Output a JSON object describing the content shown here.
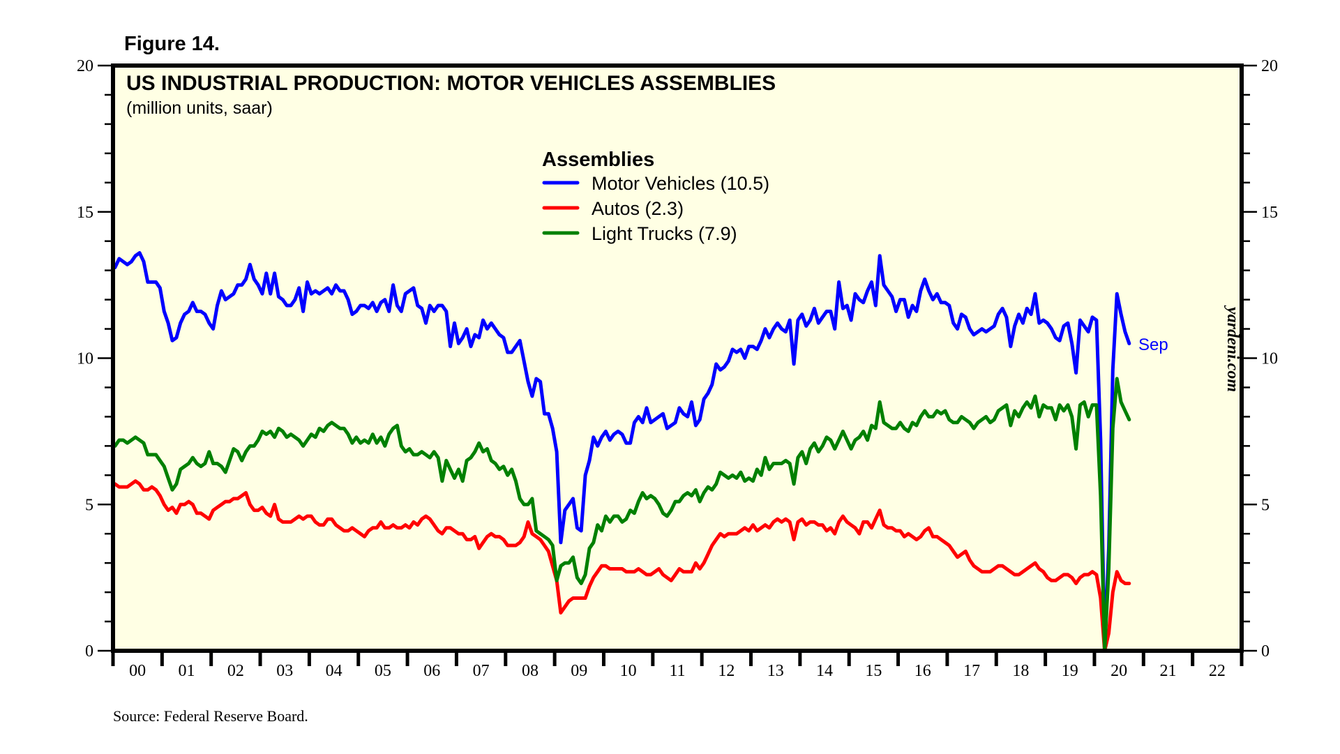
{
  "figure_label": "Figure 14.",
  "source": "Source: Federal Reserve Board.",
  "watermark": "yardeni.com",
  "chart_data": {
    "type": "line",
    "title": "US INDUSTRIAL PRODUCTION: MOTOR VEHICLES ASSEMBLIES",
    "subtitle": "(million units, saar)",
    "xlabel": "",
    "ylabel": "",
    "ylim": [
      0,
      20
    ],
    "xlim": [
      2000,
      2023
    ],
    "y_ticks": [
      0,
      5,
      10,
      15,
      20
    ],
    "y_minor_step": 1,
    "x_tick_labels": [
      "00",
      "01",
      "02",
      "03",
      "04",
      "05",
      "06",
      "07",
      "08",
      "09",
      "10",
      "11",
      "12",
      "13",
      "14",
      "15",
      "16",
      "17",
      "18",
      "19",
      "20",
      "21",
      "22"
    ],
    "grid": false,
    "frequency": "monthly",
    "start": "2000-01",
    "end": "2020-09",
    "end_label": "Sep",
    "legend": {
      "title": "Assemblies",
      "placement": "top-center",
      "entries": [
        "Motor Vehicles (10.5)",
        "Autos (2.3)",
        "Light Trucks (7.9)"
      ]
    },
    "series": [
      {
        "name": "Motor Vehicles",
        "color": "#0000ff",
        "latest": 10.5,
        "values": [
          13.1,
          13.4,
          13.3,
          13.2,
          13.3,
          13.5,
          13.6,
          13.3,
          12.6,
          12.6,
          12.6,
          12.4,
          11.6,
          11.2,
          10.6,
          10.7,
          11.2,
          11.5,
          11.6,
          11.9,
          11.6,
          11.6,
          11.5,
          11.2,
          11.0,
          11.8,
          12.3,
          12.0,
          12.1,
          12.2,
          12.5,
          12.5,
          12.7,
          13.2,
          12.7,
          12.5,
          12.2,
          12.9,
          12.2,
          12.9,
          12.1,
          12.0,
          11.8,
          11.8,
          12.0,
          12.4,
          11.6,
          12.6,
          12.2,
          12.3,
          12.2,
          12.3,
          12.4,
          12.2,
          12.5,
          12.3,
          12.3,
          12.0,
          11.5,
          11.6,
          11.8,
          11.8,
          11.7,
          11.9,
          11.6,
          11.9,
          12.0,
          11.6,
          12.5,
          11.8,
          11.6,
          12.2,
          12.3,
          12.4,
          11.8,
          11.7,
          11.2,
          11.8,
          11.6,
          11.8,
          11.8,
          11.6,
          10.4,
          11.2,
          10.5,
          10.7,
          11.0,
          10.4,
          10.8,
          10.7,
          11.3,
          11.0,
          11.2,
          11.0,
          10.8,
          10.7,
          10.2,
          10.2,
          10.4,
          10.6,
          9.9,
          9.2,
          8.7,
          9.3,
          9.2,
          8.1,
          8.1,
          7.6,
          6.8,
          3.7,
          4.8,
          5.0,
          5.2,
          4.2,
          4.1,
          6.0,
          6.5,
          7.3,
          7.0,
          7.3,
          7.5,
          7.2,
          7.4,
          7.5,
          7.4,
          7.1,
          7.1,
          7.8,
          8.0,
          7.8,
          8.3,
          7.8,
          7.9,
          8.0,
          8.1,
          7.6,
          7.7,
          7.8,
          8.3,
          8.1,
          8.0,
          8.5,
          7.7,
          7.9,
          8.6,
          8.8,
          9.1,
          9.8,
          9.6,
          9.7,
          9.9,
          10.3,
          10.2,
          10.3,
          10.0,
          10.4,
          10.4,
          10.3,
          10.6,
          11.0,
          10.7,
          11.0,
          11.2,
          11.0,
          10.9,
          11.3,
          9.8,
          11.3,
          11.5,
          11.1,
          11.3,
          11.7,
          11.2,
          11.4,
          11.6,
          11.6,
          11.0,
          12.6,
          11.7,
          11.8,
          11.3,
          12.2,
          12.0,
          11.9,
          12.3,
          12.6,
          11.8,
          13.5,
          12.5,
          12.3,
          12.1,
          11.6,
          12.0,
          12.0,
          11.4,
          11.8,
          11.6,
          12.3,
          12.7,
          12.3,
          12.0,
          12.2,
          11.9,
          11.9,
          11.8,
          11.2,
          11.0,
          11.5,
          11.4,
          11.0,
          10.8,
          10.9,
          11.0,
          10.9,
          11.0,
          11.1,
          11.5,
          11.7,
          11.4,
          10.4,
          11.1,
          11.5,
          11.2,
          11.7,
          11.5,
          12.2,
          11.2,
          11.3,
          11.2,
          11.0,
          10.7,
          10.6,
          11.1,
          11.2,
          10.5,
          9.5,
          11.3,
          11.1,
          10.9,
          11.4,
          11.3,
          7.2,
          0.1,
          3.5,
          9.6,
          12.2,
          11.5,
          10.9,
          10.5
        ]
      },
      {
        "name": "Autos",
        "color": "#ff0000",
        "latest": 2.3,
        "values": [
          5.7,
          5.6,
          5.6,
          5.6,
          5.7,
          5.8,
          5.7,
          5.5,
          5.5,
          5.6,
          5.5,
          5.3,
          5.0,
          4.8,
          4.9,
          4.7,
          5.0,
          5.0,
          5.1,
          5.0,
          4.7,
          4.7,
          4.6,
          4.5,
          4.8,
          4.9,
          5.0,
          5.1,
          5.1,
          5.2,
          5.2,
          5.3,
          5.4,
          5.0,
          4.8,
          4.8,
          4.9,
          4.7,
          4.6,
          5.0,
          4.5,
          4.4,
          4.4,
          4.4,
          4.5,
          4.6,
          4.5,
          4.6,
          4.6,
          4.4,
          4.3,
          4.3,
          4.5,
          4.5,
          4.3,
          4.2,
          4.1,
          4.1,
          4.2,
          4.1,
          4.0,
          3.9,
          4.1,
          4.2,
          4.2,
          4.4,
          4.2,
          4.2,
          4.3,
          4.2,
          4.2,
          4.3,
          4.2,
          4.4,
          4.3,
          4.5,
          4.6,
          4.5,
          4.3,
          4.1,
          4.0,
          4.2,
          4.2,
          4.1,
          4.0,
          4.0,
          3.8,
          3.8,
          3.9,
          3.5,
          3.7,
          3.9,
          4.0,
          3.9,
          3.9,
          3.8,
          3.6,
          3.6,
          3.6,
          3.7,
          3.9,
          4.4,
          4.0,
          3.9,
          3.8,
          3.6,
          3.4,
          2.9,
          2.4,
          1.3,
          1.5,
          1.7,
          1.8,
          1.8,
          1.8,
          1.8,
          2.2,
          2.5,
          2.7,
          2.9,
          2.9,
          2.8,
          2.8,
          2.8,
          2.8,
          2.7,
          2.7,
          2.7,
          2.8,
          2.7,
          2.6,
          2.6,
          2.7,
          2.8,
          2.6,
          2.5,
          2.4,
          2.6,
          2.8,
          2.7,
          2.7,
          2.7,
          3.0,
          2.8,
          3.0,
          3.3,
          3.6,
          3.8,
          4.0,
          3.9,
          4.0,
          4.0,
          4.0,
          4.1,
          4.2,
          4.1,
          4.3,
          4.1,
          4.2,
          4.3,
          4.2,
          4.4,
          4.5,
          4.4,
          4.5,
          4.4,
          3.8,
          4.4,
          4.5,
          4.3,
          4.4,
          4.4,
          4.3,
          4.3,
          4.1,
          4.2,
          4.0,
          4.4,
          4.6,
          4.4,
          4.3,
          4.2,
          4.0,
          4.4,
          4.4,
          4.2,
          4.5,
          4.8,
          4.3,
          4.2,
          4.2,
          4.1,
          4.1,
          3.9,
          4.0,
          3.9,
          3.8,
          3.9,
          4.1,
          4.2,
          3.9,
          3.9,
          3.8,
          3.7,
          3.6,
          3.4,
          3.2,
          3.3,
          3.4,
          3.1,
          2.9,
          2.8,
          2.7,
          2.7,
          2.7,
          2.8,
          2.9,
          2.9,
          2.8,
          2.7,
          2.6,
          2.6,
          2.7,
          2.8,
          2.9,
          3.0,
          2.8,
          2.7,
          2.5,
          2.4,
          2.4,
          2.5,
          2.6,
          2.6,
          2.5,
          2.3,
          2.5,
          2.6,
          2.6,
          2.7,
          2.6,
          1.8,
          0.0,
          0.6,
          2.0,
          2.7,
          2.4,
          2.3,
          2.3
        ]
      },
      {
        "name": "Light Trucks",
        "color": "#008000",
        "latest": 7.9,
        "values": [
          7.0,
          7.2,
          7.2,
          7.1,
          7.2,
          7.3,
          7.2,
          7.1,
          6.7,
          6.7,
          6.7,
          6.5,
          6.3,
          5.9,
          5.5,
          5.7,
          6.2,
          6.3,
          6.4,
          6.6,
          6.4,
          6.3,
          6.4,
          6.8,
          6.4,
          6.4,
          6.3,
          6.1,
          6.5,
          6.9,
          6.8,
          6.5,
          6.8,
          7.0,
          7.0,
          7.2,
          7.5,
          7.4,
          7.5,
          7.3,
          7.6,
          7.5,
          7.3,
          7.4,
          7.3,
          7.2,
          7.0,
          7.2,
          7.4,
          7.3,
          7.6,
          7.5,
          7.7,
          7.8,
          7.7,
          7.6,
          7.6,
          7.4,
          7.1,
          7.3,
          7.1,
          7.2,
          7.1,
          7.4,
          7.1,
          7.3,
          7.0,
          7.4,
          7.6,
          7.7,
          7.0,
          6.8,
          6.9,
          6.7,
          6.7,
          6.8,
          6.7,
          6.6,
          6.8,
          6.6,
          5.8,
          6.5,
          6.2,
          5.9,
          6.2,
          5.8,
          6.5,
          6.6,
          6.8,
          7.1,
          6.8,
          6.9,
          6.5,
          6.4,
          6.2,
          6.3,
          6.0,
          6.2,
          5.8,
          5.2,
          5.0,
          5.0,
          5.2,
          4.1,
          4.0,
          3.9,
          3.8,
          3.6,
          2.4,
          2.9,
          3.0,
          3.0,
          3.2,
          2.5,
          2.3,
          2.6,
          3.5,
          3.7,
          4.3,
          4.1,
          4.6,
          4.4,
          4.6,
          4.6,
          4.4,
          4.5,
          4.8,
          4.7,
          5.1,
          5.4,
          5.2,
          5.3,
          5.2,
          5.0,
          4.7,
          4.6,
          4.8,
          5.1,
          5.1,
          5.3,
          5.4,
          5.3,
          5.5,
          5.1,
          5.4,
          5.6,
          5.5,
          5.7,
          6.1,
          6.0,
          5.9,
          6.0,
          5.9,
          6.1,
          5.8,
          5.9,
          5.8,
          6.2,
          6.0,
          6.6,
          6.2,
          6.4,
          6.4,
          6.4,
          6.5,
          6.4,
          5.7,
          6.6,
          6.8,
          6.4,
          6.9,
          7.1,
          6.8,
          7.0,
          7.3,
          7.2,
          6.9,
          7.2,
          7.5,
          7.2,
          6.9,
          7.2,
          7.3,
          7.5,
          7.2,
          7.7,
          7.6,
          8.5,
          7.8,
          7.7,
          7.6,
          7.6,
          7.8,
          7.6,
          7.5,
          7.8,
          7.7,
          8.0,
          8.2,
          8.0,
          8.0,
          8.2,
          8.1,
          8.2,
          7.9,
          7.8,
          7.8,
          8.0,
          7.9,
          7.8,
          7.6,
          7.8,
          7.9,
          8.0,
          7.8,
          7.9,
          8.2,
          8.3,
          8.4,
          7.7,
          8.2,
          8.0,
          8.3,
          8.5,
          8.3,
          8.7,
          8.0,
          8.4,
          8.3,
          8.3,
          7.9,
          8.4,
          8.2,
          8.4,
          8.0,
          6.9,
          8.4,
          8.5,
          8.0,
          8.4,
          8.4,
          5.3,
          0.0,
          2.8,
          7.6,
          9.3,
          8.5,
          8.2,
          7.9
        ]
      }
    ]
  }
}
